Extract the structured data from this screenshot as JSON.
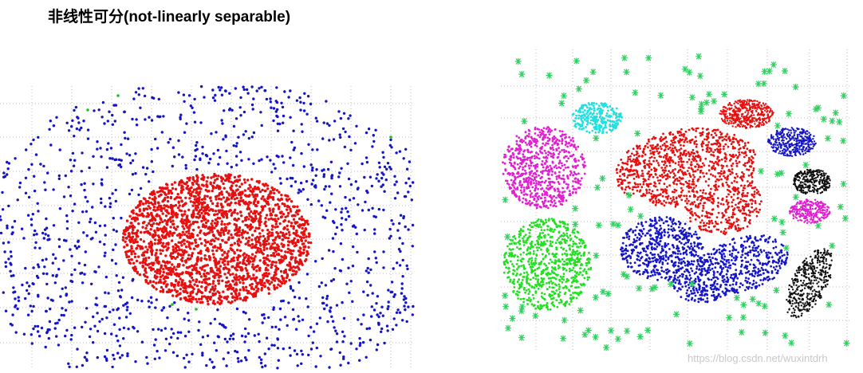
{
  "title": "非线性可分(not-linearly separable)",
  "watermark": "https://blog.csdn.net/wuxintdrh"
}
